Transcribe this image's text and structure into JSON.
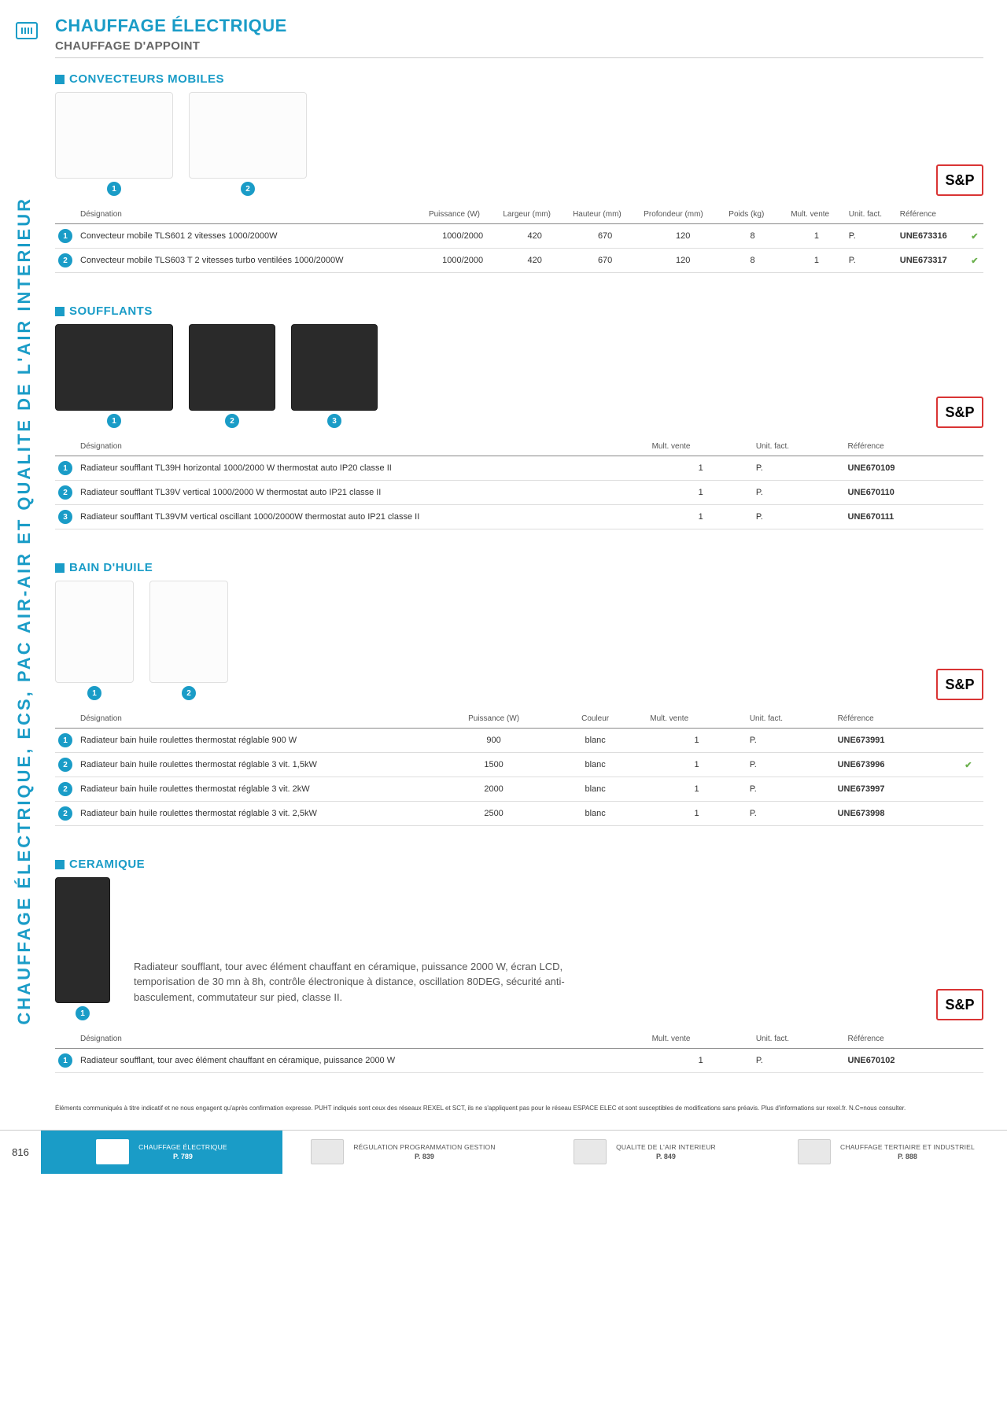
{
  "pageNumber": "816",
  "catTitle": "CHAUFFAGE ÉLECTRIQUE",
  "subTitle": "CHAUFFAGE D'APPOINT",
  "sideLabel": "CHAUFFAGE ÉLECTRIQUE, ECS, PAC AIR-AIR ET QUALITE DE L'AIR INTERIEUR",
  "brandLogo": "S&P",
  "disclaimer": "Éléments communiqués à titre indicatif et ne nous engagent qu'après confirmation expresse. PUHT indiqués sont ceux des réseaux REXEL et SCT, ils ne s'appliquent pas pour le réseau ESPACE ELEC et sont susceptibles de modifications sans préavis. Plus d'informations sur rexel.fr. N.C=nous consulter.",
  "sections": {
    "convecteurs": {
      "title": "CONVECTEURS MOBILES",
      "headers": [
        "",
        "Désignation",
        "Puissance (W)",
        "Largeur (mm)",
        "Hauteur (mm)",
        "Profondeur (mm)",
        "Poids (kg)",
        "",
        "Mult. vente",
        "Unit. fact.",
        "Référence",
        ""
      ],
      "rows": [
        {
          "num": "1",
          "des": "Convecteur mobile TLS601  2 vitesses 1000/2000W",
          "pw": "1000/2000",
          "l": "420",
          "h": "670",
          "p": "120",
          "kg": "8",
          "mv": "1",
          "uf": "P.",
          "ref": "UNE673316",
          "chk": "✔"
        },
        {
          "num": "2",
          "des": "Convecteur mobile TLS603 T  2 vitesses turbo ventilées 1000/2000W",
          "pw": "1000/2000",
          "l": "420",
          "h": "670",
          "p": "120",
          "kg": "8",
          "mv": "1",
          "uf": "P.",
          "ref": "UNE673317",
          "chk": "✔"
        }
      ]
    },
    "soufflants": {
      "title": "SOUFFLANTS",
      "headers": [
        "",
        "Désignation",
        "",
        "Mult. vente",
        "Unit. fact.",
        "Référence",
        ""
      ],
      "rows": [
        {
          "num": "1",
          "des": "Radiateur soufflant TL39H horizontal 1000/2000 W thermostat auto IP20 classe II",
          "mv": "1",
          "uf": "P.",
          "ref": "UNE670109"
        },
        {
          "num": "2",
          "des": "Radiateur soufflant TL39V vertical 1000/2000 W thermostat auto IP21 classe II",
          "mv": "1",
          "uf": "P.",
          "ref": "UNE670110"
        },
        {
          "num": "3",
          "des": "Radiateur soufflant TL39VM vertical oscillant 1000/2000W thermostat auto IP21 classe II",
          "mv": "1",
          "uf": "P.",
          "ref": "UNE670111"
        }
      ]
    },
    "bain": {
      "title": "BAIN D'HUILE",
      "headers": [
        "",
        "Désignation",
        "Puissance (W)",
        "Couleur",
        "",
        "Mult. vente",
        "Unit. fact.",
        "Référence",
        ""
      ],
      "rows": [
        {
          "num": "1",
          "des": "Radiateur bain huile roulettes thermostat réglable 900 W",
          "pw": "900",
          "col": "blanc",
          "mv": "1",
          "uf": "P.",
          "ref": "UNE673991",
          "chk": ""
        },
        {
          "num": "2",
          "des": "Radiateur bain huile roulettes thermostat réglable 3 vit. 1,5kW",
          "pw": "1500",
          "col": "blanc",
          "mv": "1",
          "uf": "P.",
          "ref": "UNE673996",
          "chk": "✔"
        },
        {
          "num": "2",
          "des": "Radiateur bain huile roulettes thermostat réglable 3 vit. 2kW",
          "pw": "2000",
          "col": "blanc",
          "mv": "1",
          "uf": "P.",
          "ref": "UNE673997",
          "chk": ""
        },
        {
          "num": "2",
          "des": "Radiateur bain huile roulettes thermostat réglable 3 vit. 2,5kW",
          "pw": "2500",
          "col": "blanc",
          "mv": "1",
          "uf": "P.",
          "ref": "UNE673998",
          "chk": ""
        }
      ]
    },
    "ceramique": {
      "title": "CERAMIQUE",
      "desc": "Radiateur soufflant, tour avec élément chauffant en céramique, puissance 2000 W, écran LCD, temporisation de 30 mn à 8h, contrôle électronique à distance, oscillation 80DEG, sécurité anti-basculement, commutateur sur pied, classe II.",
      "headers": [
        "",
        "Désignation",
        "",
        "Mult. vente",
        "Unit. fact.",
        "Référence",
        ""
      ],
      "rows": [
        {
          "num": "1",
          "des": "Radiateur soufflant, tour avec élément chauffant en céramique, puissance 2000 W",
          "mv": "1",
          "uf": "P.",
          "ref": "UNE670102"
        }
      ]
    }
  },
  "footerNav": [
    {
      "title": "CHAUFFAGE ÉLECTRIQUE",
      "page": "P. 789",
      "active": true
    },
    {
      "title": "RÉGULATION PROGRAMMATION GESTION",
      "page": "P. 839",
      "active": false
    },
    {
      "title": "QUALITE DE L'AIR INTERIEUR",
      "page": "P. 849",
      "active": false
    },
    {
      "title": "CHAUFFAGE TERTIAIRE ET INDUSTRIEL",
      "page": "P. 888",
      "active": false
    }
  ],
  "colors": {
    "accent": "#1a9cc7",
    "logoBorder": "#d93434",
    "check": "#6ab04c"
  }
}
